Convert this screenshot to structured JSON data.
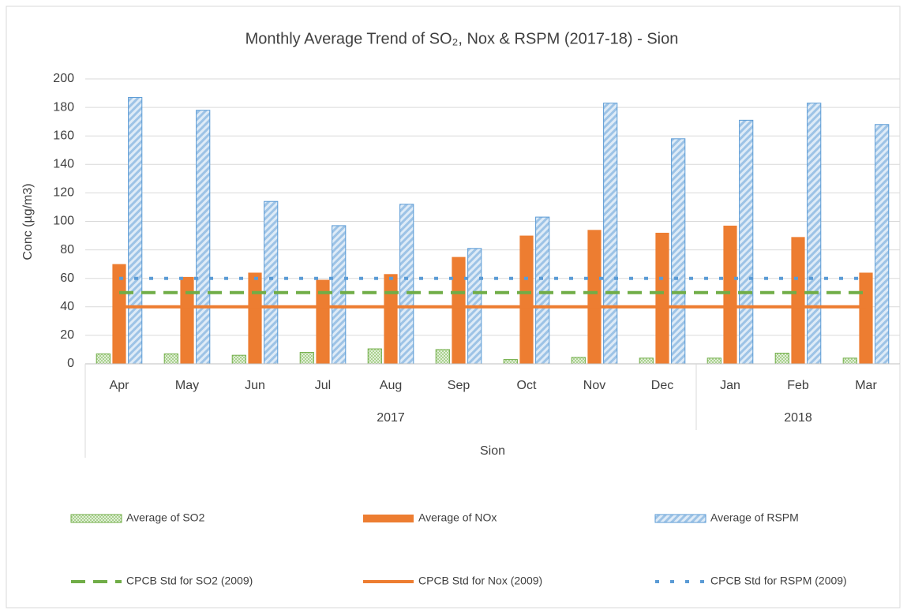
{
  "chart_data": {
    "type": "bar_line",
    "title": "Monthly Average Trend of SO₂, Nox & RSPM (2017-18) - Sion",
    "y_label": "Conc (µg/m3)",
    "categories": [
      "Apr",
      "May",
      "Jun",
      "Jul",
      "Aug",
      "Sep",
      "Oct",
      "Nov",
      "Dec",
      "Jan",
      "Feb",
      "Mar"
    ],
    "x_groups": [
      {
        "label": "2017",
        "span": 9
      },
      {
        "label": "2018",
        "span": 3
      }
    ],
    "x_outer_label": "Sion",
    "ylim": [
      0,
      200
    ],
    "yticks": [
      0,
      20,
      40,
      60,
      80,
      100,
      120,
      140,
      160,
      180,
      200
    ],
    "grid": true,
    "legend": "bottom",
    "series": [
      {
        "name": "Average of SO2",
        "style": "bar",
        "pattern": "grid",
        "color": "#70ad47",
        "values": [
          7,
          7,
          6,
          8,
          10.5,
          10,
          3,
          4.5,
          4,
          4,
          7.5,
          4
        ]
      },
      {
        "name": "Average of NOx",
        "style": "bar",
        "pattern": "solid",
        "color": "#ed7d31",
        "values": [
          70,
          61,
          64,
          59,
          63,
          75,
          90,
          94,
          92,
          97,
          89,
          64
        ]
      },
      {
        "name": "Average of RSPM",
        "style": "bar",
        "pattern": "diagonal",
        "color": "#5b9bd5",
        "values": [
          187,
          178,
          114,
          97,
          112,
          81,
          103,
          183,
          158,
          171,
          183,
          168
        ]
      },
      {
        "name": "CPCB Std for SO2 (2009)",
        "style": "line",
        "pattern": "dash",
        "color": "#70ad47",
        "values": [
          50,
          50,
          50,
          50,
          50,
          50,
          50,
          50,
          50,
          50,
          50,
          50
        ]
      },
      {
        "name": "CPCB Std for Nox (2009)",
        "style": "line",
        "pattern": "solid",
        "color": "#ed7d31",
        "values": [
          40,
          40,
          40,
          40,
          40,
          40,
          40,
          40,
          40,
          40,
          40,
          40
        ]
      },
      {
        "name": "CPCB Std for RSPM (2009)",
        "style": "line",
        "pattern": "dot",
        "color": "#5b9bd5",
        "values": [
          60,
          60,
          60,
          60,
          60,
          60,
          60,
          60,
          60,
          60,
          60,
          60
        ]
      }
    ]
  }
}
